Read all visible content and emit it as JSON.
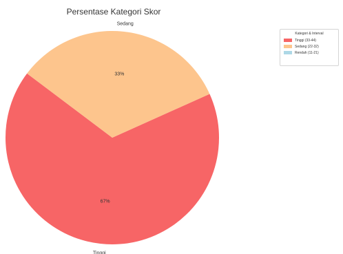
{
  "chart_data": {
    "type": "pie",
    "title": "Persentase Kategori Skor",
    "slices": [
      {
        "label": "Tinggi",
        "value": 67,
        "pct_label": "67%",
        "color": "#f76566"
      },
      {
        "label": "Sedang",
        "value": 33,
        "pct_label": "33%",
        "color": "#fdc58d"
      },
      {
        "label": "",
        "value": 0,
        "pct_label": "",
        "color": "#add8e6"
      }
    ],
    "legend": {
      "title": "Kategori & Interval",
      "placement": "top-right",
      "items": [
        {
          "label": "Tinggi (33-44)",
          "color": "#f76566"
        },
        {
          "label": "Sedang (22-32)",
          "color": "#fdc58d"
        },
        {
          "label": "Rendah (11-21)",
          "color": "#add8e6"
        }
      ]
    }
  }
}
